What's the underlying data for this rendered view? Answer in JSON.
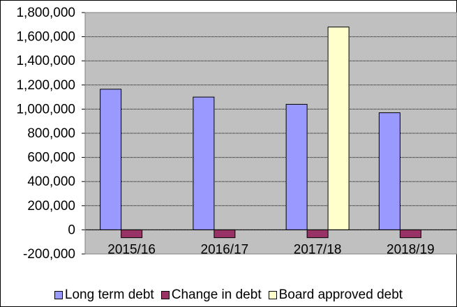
{
  "chart_data": {
    "type": "bar",
    "categories": [
      "2015/16",
      "2016/17",
      "2017/18",
      "2018/19"
    ],
    "series": [
      {
        "name": "Long term debt",
        "color": "#9999ff",
        "values": [
          1165000,
          1100000,
          1040000,
          970000
        ]
      },
      {
        "name": "Change in debt",
        "color": "#993366",
        "values": [
          -65000,
          -65000,
          -65000,
          -65000
        ]
      },
      {
        "name": "Board approved debt",
        "color": "#ffffcc",
        "values": [
          null,
          null,
          1680000,
          null
        ]
      }
    ],
    "ylim": [
      -200000,
      1800000
    ],
    "yticks": [
      -200000,
      0,
      200000,
      400000,
      600000,
      800000,
      1000000,
      1200000,
      1400000,
      1600000,
      1800000
    ],
    "ytick_labels": [
      "-200,000",
      "0",
      "200,000",
      "400,000",
      "600,000",
      "800,000",
      "1,000,000",
      "1,200,000",
      "1,400,000",
      "1,600,000",
      "1,800,000"
    ],
    "grid": true,
    "plot_background": "#c0c0c0",
    "legend_position": "bottom",
    "title": "",
    "xlabel": "",
    "ylabel": ""
  }
}
